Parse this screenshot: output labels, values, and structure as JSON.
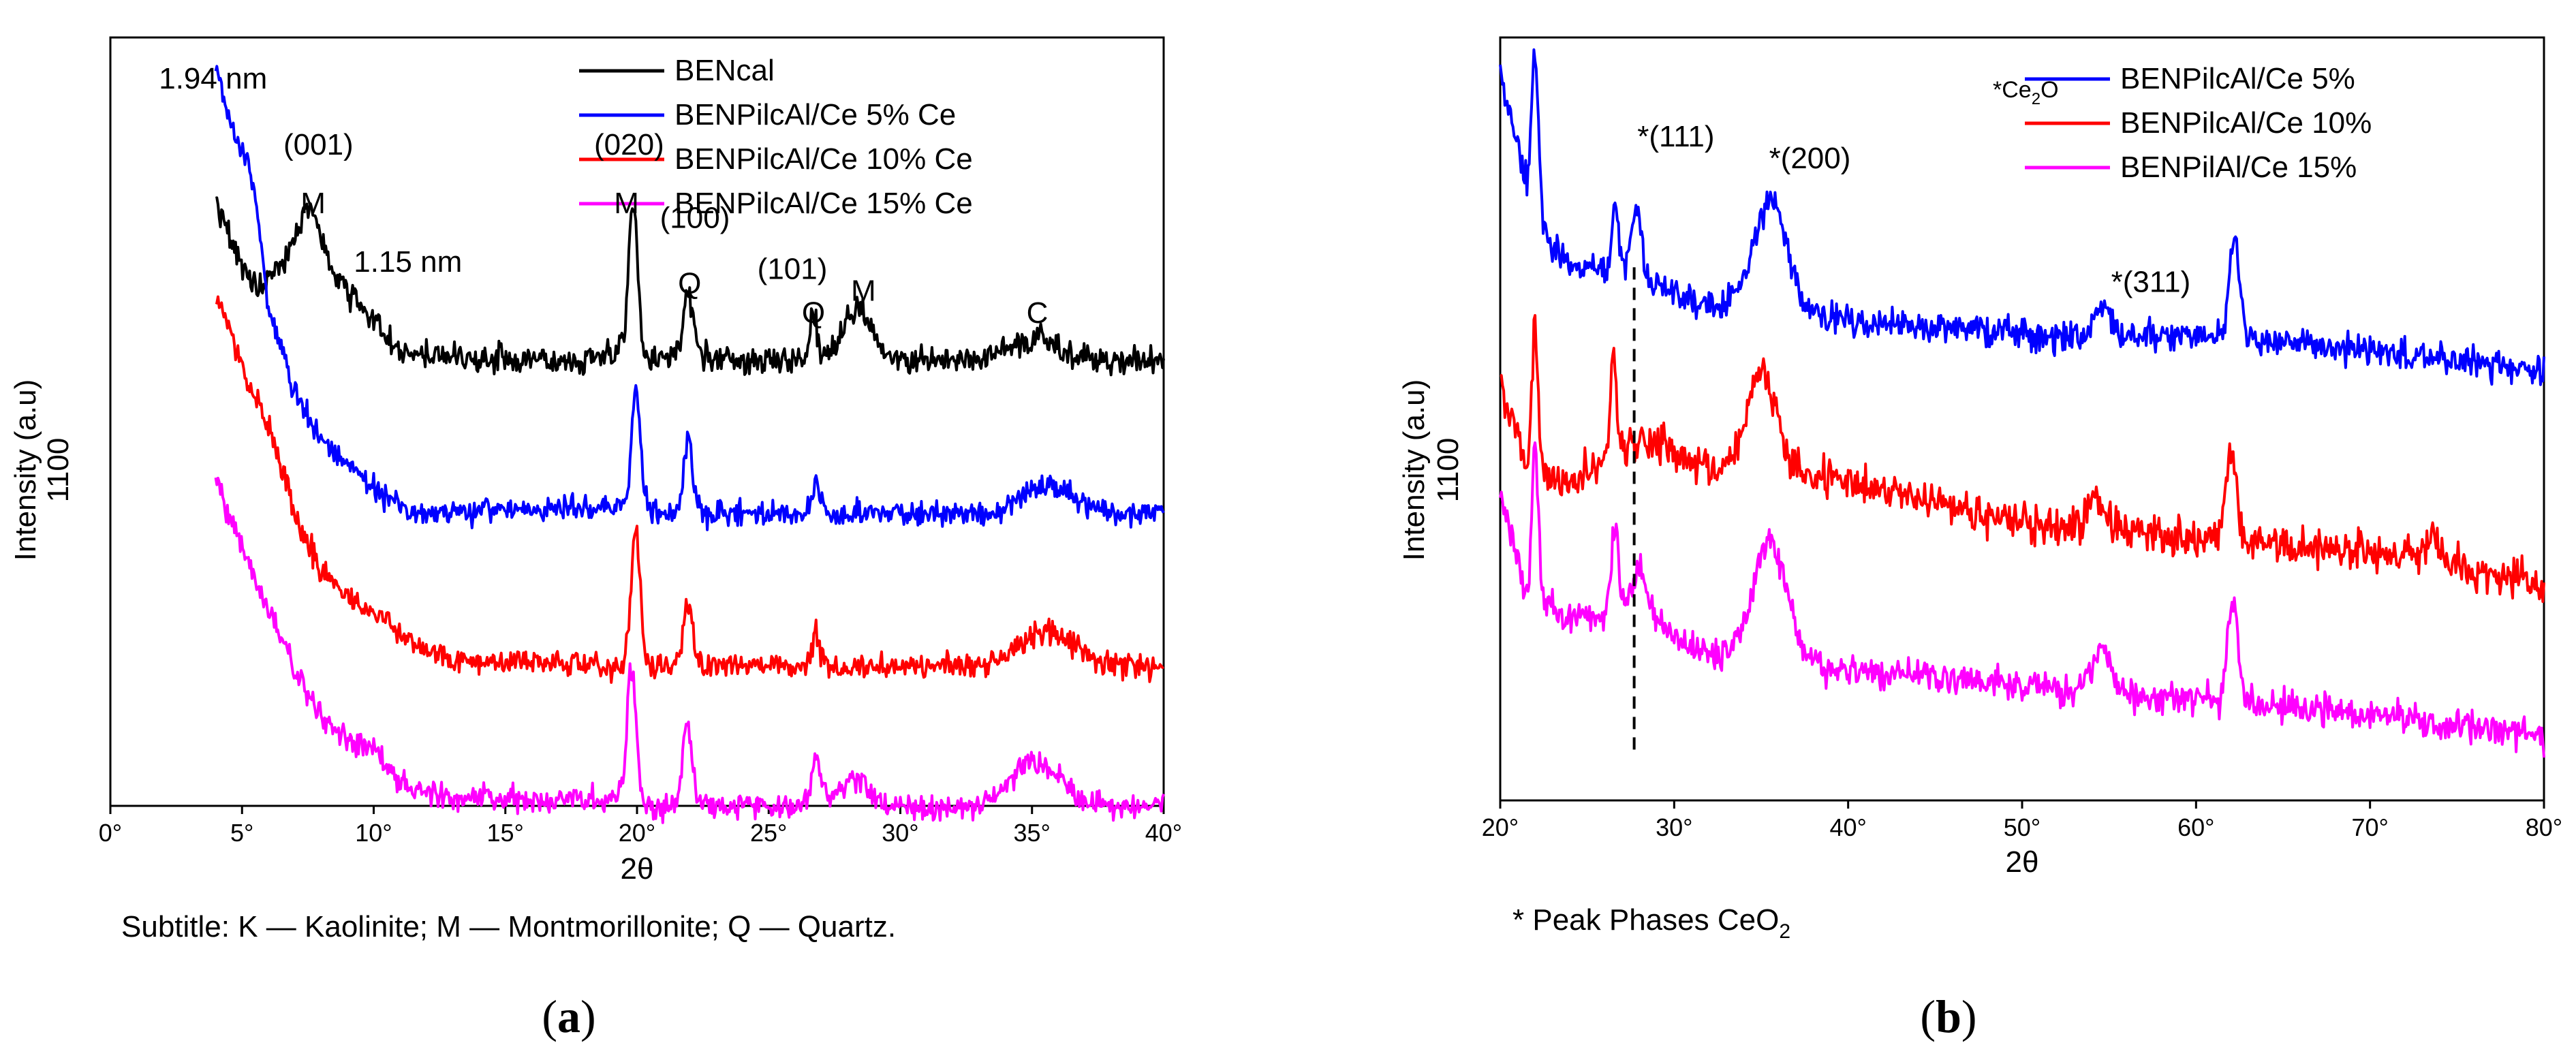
{
  "chart_data": [
    {
      "type": "line",
      "panel_label": "(a)",
      "title": "",
      "xlabel": "2θ",
      "ylabel": "Intensity (a.u)",
      "ytick_label": "1100",
      "xlim": [
        0,
        40
      ],
      "ylim": [
        0,
        105
      ],
      "x_ticks": [
        0,
        5,
        10,
        15,
        20,
        25,
        30,
        35,
        40
      ],
      "x_tick_labels": [
        "0°",
        "5°",
        "10°",
        "15°",
        "20°",
        "25°",
        "30°",
        "35°",
        "40°"
      ],
      "legend_location": "top-right",
      "series": [
        {
          "name": "BENcal",
          "color": "#000000",
          "x_start": 4,
          "x_end": 40,
          "baseline": 61,
          "noise": 1.6,
          "curve": {
            "points": [
              [
                4,
                83
              ],
              [
                4.8,
                75
              ],
              [
                5.6,
                71
              ],
              [
                6.5,
                74
              ],
              [
                7.6,
                82
              ],
              [
                8.6,
                72
              ],
              [
                9.6,
                68
              ],
              [
                11,
                62
              ],
              [
                14,
                61
              ],
              [
                18,
                61
              ],
              [
                19.5,
                62
              ]
            ]
          },
          "peaks": [
            [
              19.85,
              22,
              0.17
            ],
            [
              21.95,
              9,
              0.2
            ],
            [
              26.7,
              7,
              0.12
            ],
            [
              28.4,
              7,
              0.5
            ],
            [
              35,
              3,
              0.8
            ]
          ]
        },
        {
          "name": "BENPilcAl/Ce 5% Ce",
          "color": "#0000ff",
          "x_start": 4,
          "x_end": 40,
          "baseline": 40,
          "noise": 1.4,
          "curve": {
            "points": [
              [
                4,
                101
              ],
              [
                4.6,
                93
              ],
              [
                5.4,
                86
              ],
              [
                6,
                68
              ],
              [
                7,
                57
              ],
              [
                8,
                50
              ],
              [
                9.5,
                45
              ],
              [
                10.5,
                42
              ],
              [
                12,
                40
              ],
              [
                19.5,
                41
              ]
            ]
          },
          "peaks": [
            [
              19.95,
              16,
              0.18
            ],
            [
              21.95,
              10,
              0.18
            ],
            [
              26.8,
              4,
              0.15
            ],
            [
              35.6,
              4,
              1.0
            ]
          ]
        },
        {
          "name": "BENPilcAl/Ce 10% Ce",
          "color": "#ff0000",
          "x_start": 4,
          "x_end": 40,
          "baseline": 19,
          "noise": 1.4,
          "curve": {
            "points": [
              [
                4,
                70
              ],
              [
                5,
                60
              ],
              [
                6,
                52
              ],
              [
                7,
                40
              ],
              [
                8,
                32
              ],
              [
                9.5,
                27
              ],
              [
                10.5,
                26
              ],
              [
                11.5,
                22
              ],
              [
                13,
                20
              ],
              [
                19.5,
                19
              ]
            ]
          },
          "peaks": [
            [
              19.95,
              18,
              0.18
            ],
            [
              21.95,
              9,
              0.18
            ],
            [
              26.8,
              4,
              0.15
            ],
            [
              35.5,
              5,
              1.0
            ]
          ]
        },
        {
          "name": "BENPilcAl/Ce 15% Ce",
          "color": "#ff00ff",
          "x_start": 4,
          "x_end": 40,
          "baseline": 0,
          "noise": 1.4,
          "curve": {
            "points": [
              [
                4,
                45
              ],
              [
                5,
                35
              ],
              [
                6,
                27
              ],
              [
                7,
                19
              ],
              [
                8,
                12
              ],
              [
                9,
                9
              ],
              [
                10,
                8
              ],
              [
                11,
                3
              ],
              [
                13,
                1
              ],
              [
                19.5,
                1
              ]
            ]
          },
          "peaks": [
            [
              19.8,
              19,
              0.18
            ],
            [
              21.9,
              11,
              0.18
            ],
            [
              26.8,
              6,
              0.2
            ],
            [
              28.3,
              4,
              0.5
            ],
            [
              35.1,
              6,
              0.9
            ]
          ]
        }
      ],
      "annotations": [
        {
          "text": "1.94 nm",
          "x": 3.9,
          "y": 98
        },
        {
          "text": "(001)",
          "x": 7.9,
          "y": 89
        },
        {
          "text": "M",
          "x": 7.7,
          "y": 81
        },
        {
          "text": "1.15 nm",
          "x": 11.3,
          "y": 73
        },
        {
          "text": "(020)",
          "x": 19.7,
          "y": 89
        },
        {
          "text": "M",
          "x": 19.6,
          "y": 81
        },
        {
          "text": "(100)",
          "x": 22.2,
          "y": 79
        },
        {
          "text": "Q",
          "x": 22,
          "y": 70
        },
        {
          "text": "(101)",
          "x": 25.9,
          "y": 72
        },
        {
          "text": "Q",
          "x": 26.7,
          "y": 66
        },
        {
          "text": "M",
          "x": 28.6,
          "y": 69
        },
        {
          "text": "C",
          "x": 35.2,
          "y": 66
        }
      ],
      "footnote": "Subtitle: K — Kaolinite; M — Montmorillonite; Q — Quartz."
    },
    {
      "type": "line",
      "panel_label": "(b)",
      "title": "",
      "xlabel": "2θ",
      "ylabel": "Intensity (a.u)",
      "ytick_label": "1100",
      "xlim": [
        20,
        80
      ],
      "ylim": [
        0,
        105
      ],
      "x_ticks": [
        20,
        30,
        40,
        50,
        60,
        70,
        80
      ],
      "x_tick_labels": [
        "20°",
        "30°",
        "40°",
        "50°",
        "60°",
        "70°",
        "80°"
      ],
      "legend_location": "top-right",
      "legend_header": "*Ce",
      "legend_header_sub": "2",
      "legend_header_tail": "O",
      "series": [
        {
          "name": "BENPilcAl/Ce 5%",
          "color": "#0000ff",
          "x_start": 20,
          "x_end": 80,
          "baseline": 61,
          "noise": 1.8,
          "curve": {
            "points": [
              [
                20,
                100
              ],
              [
                21.5,
                85
              ],
              [
                23,
                76
              ],
              [
                25,
                73
              ],
              [
                28,
                72
              ],
              [
                32,
                68
              ],
              [
                40,
                66
              ],
              [
                50,
                64
              ],
              [
                60,
                64
              ],
              [
                70,
                62
              ],
              [
                80,
                59
              ]
            ]
          },
          "peaks": [
            [
              22,
              22,
              0.18
            ],
            [
              26.6,
              10,
              0.18
            ],
            [
              27.8,
              10,
              0.3
            ],
            [
              35.5,
              15,
              1.0
            ],
            [
              54.6,
              4,
              0.5
            ],
            [
              62.2,
              14,
              0.3
            ]
          ]
        },
        {
          "name": "BENPilcAl/Ce 10%",
          "color": "#ff0000",
          "x_start": 20,
          "x_end": 80,
          "baseline": 30,
          "noise": 2.2,
          "curve": {
            "points": [
              [
                20,
                58
              ],
              [
                21.5,
                46
              ],
              [
                24,
                44
              ],
              [
                28,
                50
              ],
              [
                32,
                46
              ],
              [
                40,
                44
              ],
              [
                50,
                38
              ],
              [
                60,
                36
              ],
              [
                70,
                34
              ],
              [
                80,
                30
              ]
            ]
          },
          "peaks": [
            [
              22,
              20,
              0.18
            ],
            [
              26.5,
              14,
              0.18
            ],
            [
              35,
              14,
              0.8
            ],
            [
              54.3,
              5,
              0.5
            ],
            [
              62,
              12,
              0.35
            ],
            [
              73.5,
              3,
              0.7
            ]
          ]
        },
        {
          "name": "BENPilAl/Ce 15%",
          "color": "#ff00ff",
          "x_start": 20,
          "x_end": 80,
          "baseline": 6,
          "noise": 1.8,
          "curve": {
            "points": [
              [
                20,
                42
              ],
              [
                21.5,
                28
              ],
              [
                24,
                25
              ],
              [
                28,
                26
              ],
              [
                32,
                20
              ],
              [
                40,
                18
              ],
              [
                50,
                16
              ],
              [
                60,
                14
              ],
              [
                70,
                12
              ],
              [
                80,
                9
              ]
            ]
          },
          "peaks": [
            [
              22,
              22,
              0.18
            ],
            [
              26.6,
              12,
              0.2
            ],
            [
              28,
              6,
              0.4
            ],
            [
              35.5,
              16,
              1.0
            ],
            [
              54.5,
              6,
              0.5
            ],
            [
              62.1,
              14,
              0.3
            ]
          ]
        }
      ],
      "annotations": [
        {
          "text": "*(111)",
          "x": 30.1,
          "y": 90
        },
        {
          "text": "*(200)",
          "x": 37.8,
          "y": 87
        },
        {
          "text": "*(311)",
          "x": 57.4,
          "y": 70
        }
      ],
      "reference_line": {
        "x": 27.7,
        "y_from": 7,
        "y_to": 74
      },
      "footnote": "* Peak Phases CeO",
      "footnote_sub": "2"
    }
  ]
}
